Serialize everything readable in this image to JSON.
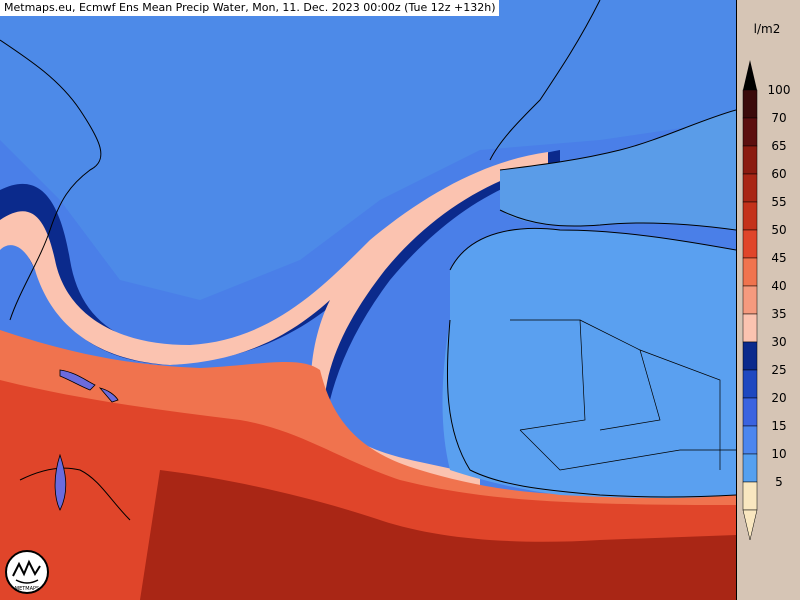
{
  "header": {
    "title": "Metmaps.eu, Ecmwf Ens Mean Precip Water, Mon, 11. Dec. 2023 00:00z (Tue 12z +132h)"
  },
  "legend": {
    "unit": "l/m2",
    "levels": [
      {
        "value": 100,
        "label": "100",
        "color": "#3b0a0a"
      },
      {
        "value": 70,
        "label": "70",
        "color": "#5c0f0f"
      },
      {
        "value": 65,
        "label": "65",
        "color": "#8b1b10"
      },
      {
        "value": 60,
        "label": "60",
        "color": "#a92615"
      },
      {
        "value": 55,
        "label": "55",
        "color": "#c4321b"
      },
      {
        "value": 50,
        "label": "50",
        "color": "#e0452a"
      },
      {
        "value": 45,
        "label": "45",
        "color": "#f0734e"
      },
      {
        "value": 40,
        "label": "40",
        "color": "#f59a7e"
      },
      {
        "value": 35,
        "label": "35",
        "color": "#fbc3b0"
      },
      {
        "value": 30,
        "label": "30",
        "color": "#0b2a8c"
      },
      {
        "value": 25,
        "label": "25",
        "color": "#1e48c0"
      },
      {
        "value": 20,
        "label": "20",
        "color": "#3a63e0"
      },
      {
        "value": 15,
        "label": "15",
        "color": "#4c86ee"
      },
      {
        "value": 10,
        "label": "10",
        "color": "#55a0f0"
      },
      {
        "value": 5,
        "label": "5",
        "color": "#f9e7c0"
      }
    ]
  },
  "logo": {
    "text": "METMAPS"
  },
  "colors": {
    "ocean_low": "#4a80ec",
    "ocean_mid": "#3a63e0",
    "ocean_deep": "#1e48c0",
    "band_dark": "#0b2a8c",
    "plume_light": "#fbc3b0",
    "plume_mid": "#f0734e",
    "tropics": "#e0452a",
    "tropics_dark": "#a92615",
    "land_blue": "#5aa0f0",
    "legend_bg": "#d6c5b5"
  }
}
